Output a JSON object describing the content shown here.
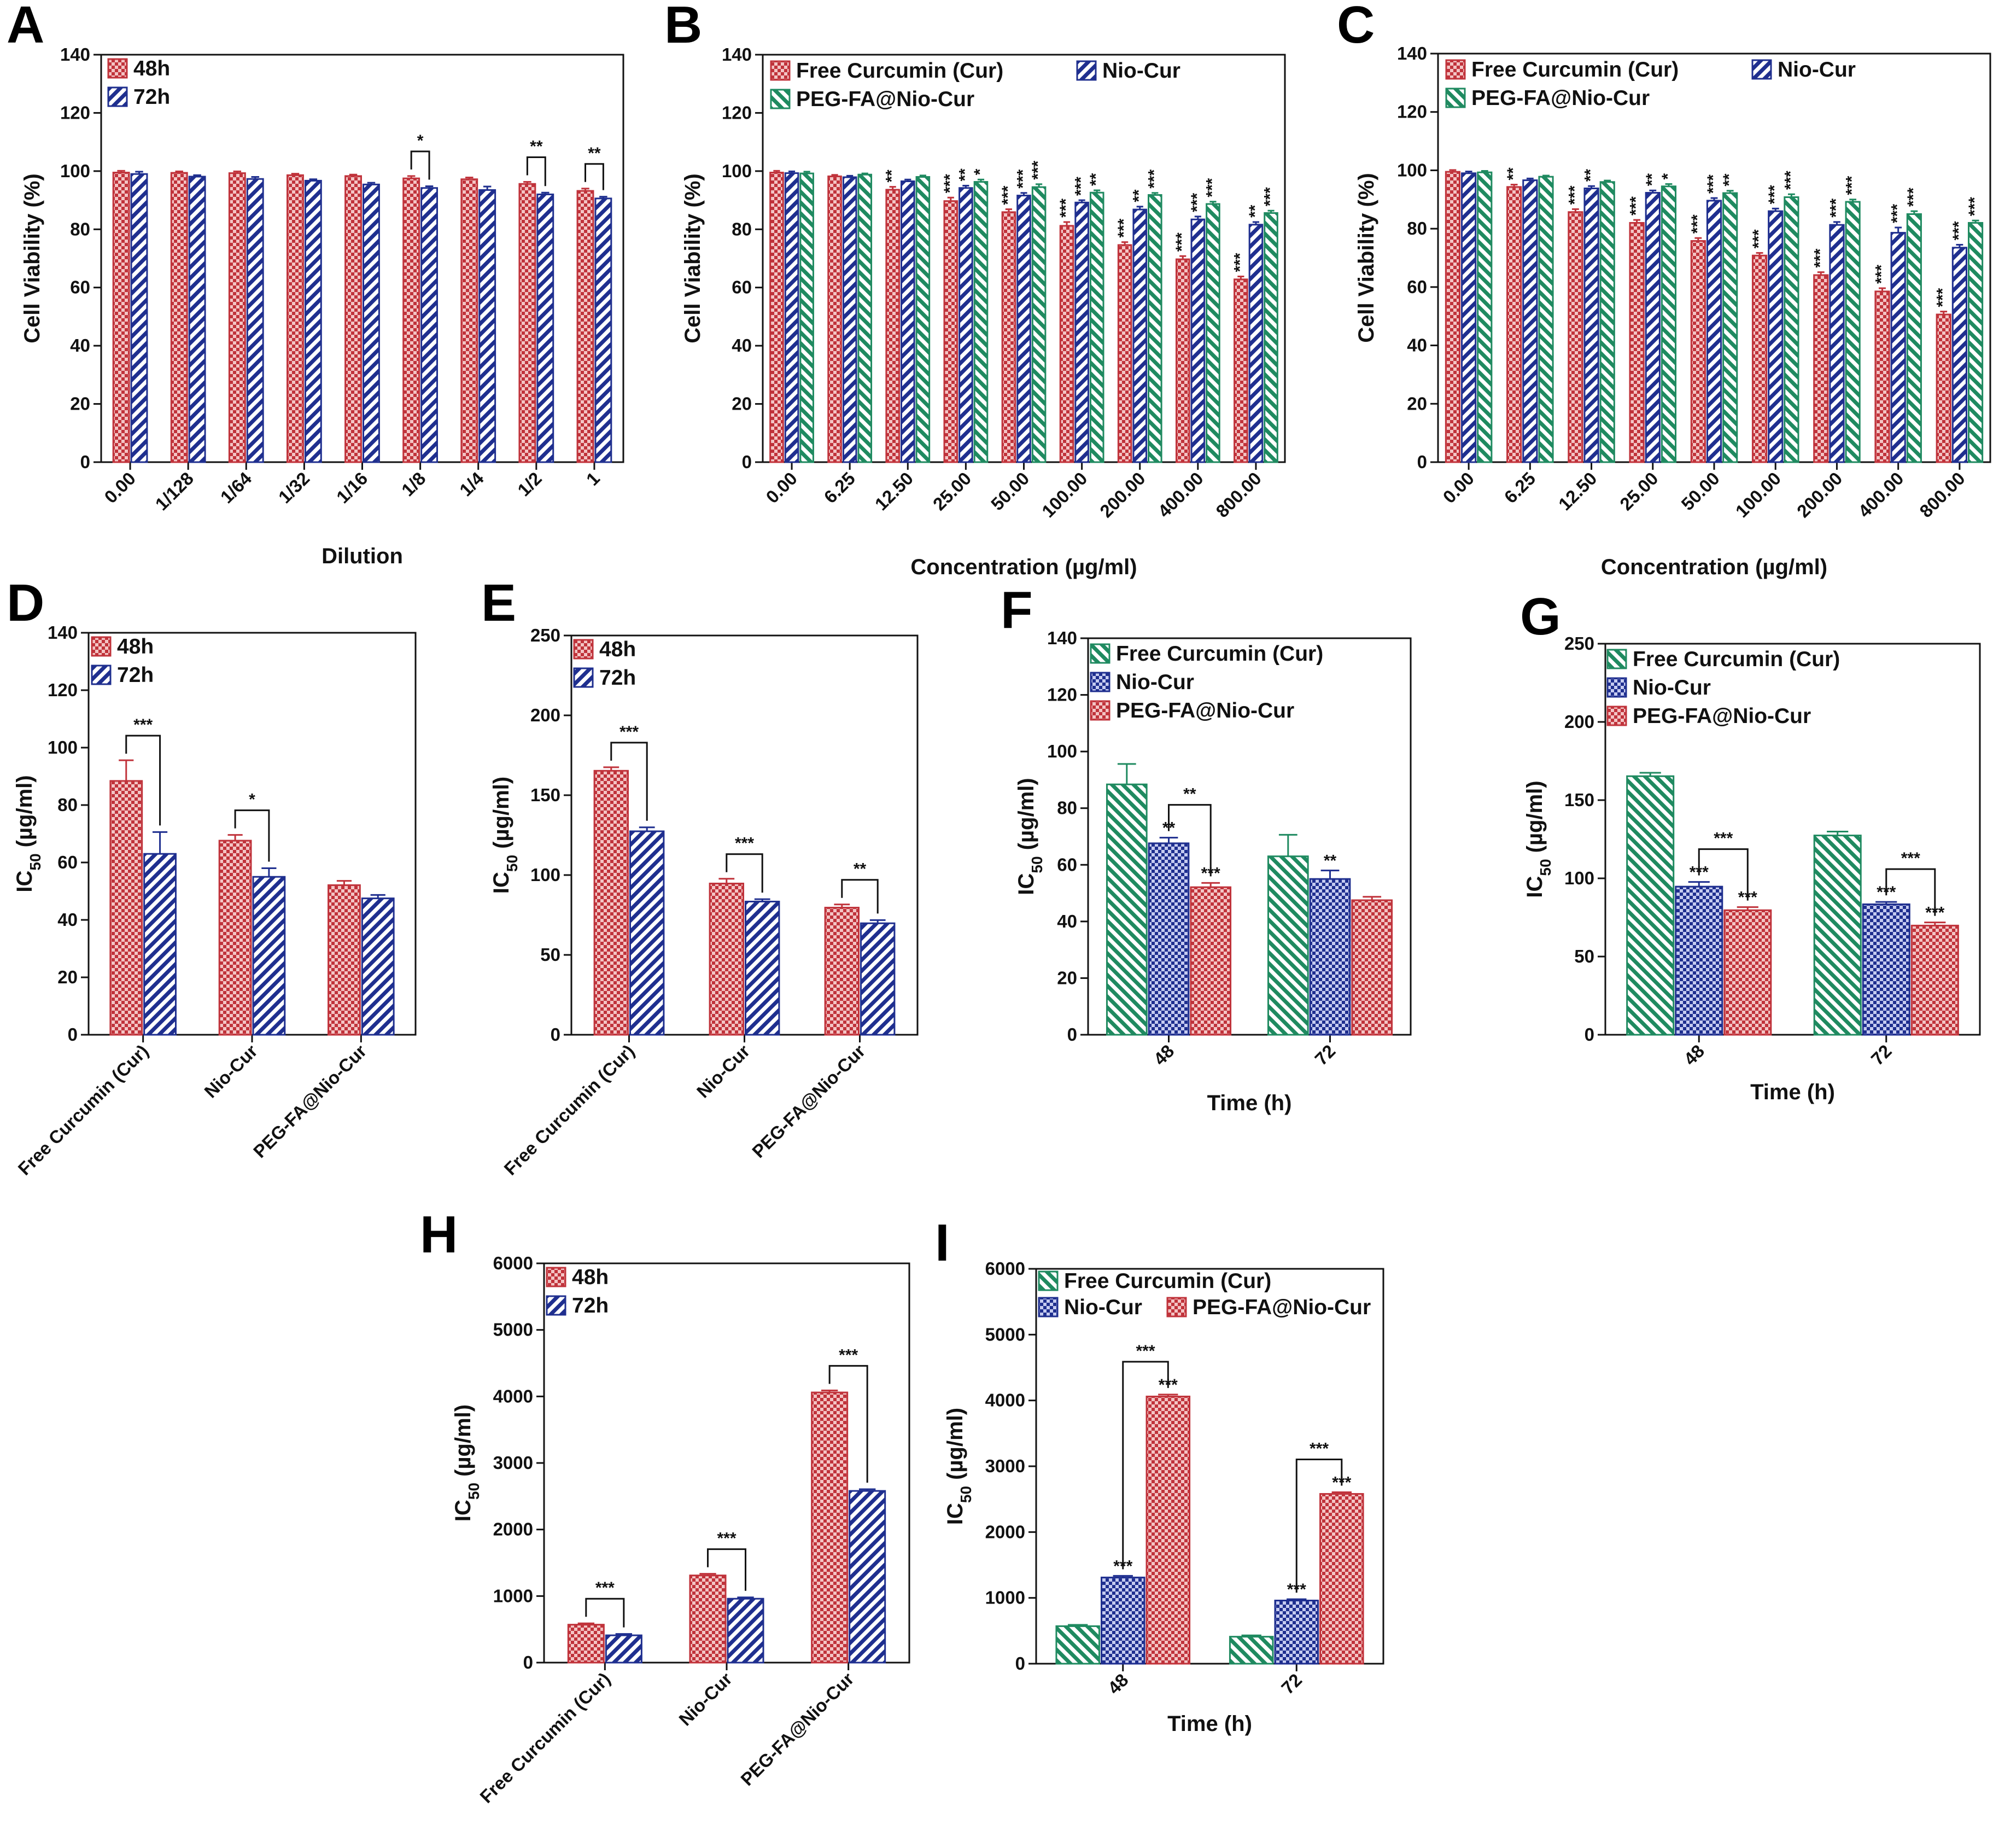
{
  "figure_title": "Cell viability and IC50 panels",
  "colors": {
    "red": "#c0333b",
    "red_fill": "#e9a5a6",
    "blue": "#1f2f8f",
    "blue_fill": "#8a93cf",
    "green": "#1f8a60",
    "green_fill": "#8fd2b3",
    "axis": "#111111"
  },
  "chart_data": [
    {
      "id": "A",
      "type": "bar",
      "letter": "A",
      "ylabel": "Cell Viability (%)",
      "xlabel": "Dilution",
      "ylim": [
        0,
        140
      ],
      "yticks": [
        0,
        20,
        40,
        60,
        80,
        100,
        120,
        140
      ],
      "categories": [
        "0.00",
        "1/128",
        "1/64",
        "1/32",
        "1/16",
        "1/8",
        "1/4",
        "1/2",
        "1"
      ],
      "rotate_ticks": true,
      "legend_position": "top-left",
      "series": [
        {
          "name": "48h",
          "color": "red",
          "values": [
            99.5,
            99.4,
            99.3,
            98.6,
            98.3,
            97.5,
            97.2,
            95.6,
            93.2
          ],
          "errors": [
            0.6,
            0.5,
            0.6,
            0.5,
            0.5,
            0.8,
            0.6,
            0.7,
            0.8
          ],
          "sig": [
            "",
            "",
            "",
            "",
            "",
            "",
            "",
            "",
            ""
          ]
        },
        {
          "name": "72h",
          "color": "blue",
          "values": [
            99.0,
            98.1,
            97.3,
            96.7,
            95.4,
            94.2,
            93.5,
            92.0,
            90.6
          ],
          "errors": [
            0.8,
            0.5,
            0.7,
            0.5,
            0.6,
            0.6,
            1.2,
            0.6,
            0.6
          ],
          "sig": [
            "",
            "",
            "",
            "",
            "",
            "",
            "",
            "",
            ""
          ]
        }
      ],
      "brackets": [
        {
          "cat": 5,
          "from": 0,
          "to": 1,
          "label": "*"
        },
        {
          "cat": 7,
          "from": 0,
          "to": 1,
          "label": "**"
        },
        {
          "cat": 8,
          "from": 0,
          "to": 1,
          "label": "**"
        }
      ]
    },
    {
      "id": "B",
      "type": "bar",
      "letter": "B",
      "ylabel": "Cell Viability (%)",
      "xlabel": "Concentration (µg/ml)",
      "ylim": [
        0,
        140
      ],
      "yticks": [
        0,
        20,
        40,
        60,
        80,
        100,
        120,
        140
      ],
      "categories": [
        "0.00",
        "6.25",
        "12.50",
        "25.00",
        "50.00",
        "100.00",
        "200.00",
        "400.00",
        "800.00"
      ],
      "rotate_ticks": true,
      "legend_position": "top",
      "series": [
        {
          "name": "Free Curcumin (Cur)",
          "color": "red",
          "values": [
            99.5,
            98.2,
            93.6,
            89.7,
            85.9,
            81.2,
            74.6,
            69.7,
            62.8
          ],
          "errors": [
            0.6,
            0.5,
            1.0,
            1.2,
            1.0,
            1.3,
            1.0,
            1.1,
            1.0
          ],
          "sig": [
            "",
            "",
            "**",
            "***",
            "***",
            "***",
            "***",
            "***",
            "***"
          ]
        },
        {
          "name": "Nio-Cur",
          "color": "blue",
          "values": [
            99.3,
            97.9,
            96.5,
            94.2,
            91.6,
            89.2,
            86.8,
            83.4,
            81.6
          ],
          "errors": [
            0.6,
            0.5,
            0.6,
            0.8,
            0.9,
            0.8,
            1.0,
            1.0,
            0.9
          ],
          "sig": [
            "",
            "",
            "",
            "**",
            "***",
            "***",
            "**",
            "***",
            "**"
          ]
        },
        {
          "name": "PEG-FA@Nio-Cur",
          "color": "green",
          "values": [
            99.2,
            98.8,
            98.0,
            96.3,
            94.5,
            92.6,
            91.8,
            88.7,
            85.6
          ],
          "errors": [
            0.6,
            0.4,
            0.5,
            0.8,
            1.0,
            0.8,
            0.7,
            0.8,
            0.8
          ],
          "sig": [
            "",
            "",
            "",
            "*",
            "***",
            "**",
            "***",
            "***",
            "***"
          ]
        }
      ],
      "brackets": []
    },
    {
      "id": "C",
      "type": "bar",
      "letter": "C",
      "ylabel": "Cell Viability (%)",
      "xlabel": "Concentration (µg/ml)",
      "ylim": [
        0,
        140
      ],
      "yticks": [
        0,
        20,
        40,
        60,
        80,
        100,
        120,
        140
      ],
      "categories": [
        "0.00",
        "6.25",
        "12.50",
        "25.00",
        "50.00",
        "100.00",
        "200.00",
        "400.00",
        "800.00"
      ],
      "rotate_ticks": true,
      "legend_position": "top",
      "series": [
        {
          "name": "Free Curcumin (Cur)",
          "color": "red",
          "values": [
            99.5,
            94.3,
            85.7,
            82.0,
            75.8,
            70.8,
            64.1,
            58.5,
            50.6
          ],
          "errors": [
            0.6,
            0.8,
            1.0,
            1.0,
            1.0,
            0.9,
            1.0,
            1.1,
            1.0
          ],
          "sig": [
            "",
            "**",
            "***",
            "***",
            "***",
            "***",
            "***",
            "***",
            "***"
          ]
        },
        {
          "name": "Nio-Cur",
          "color": "blue",
          "values": [
            99.0,
            96.6,
            93.8,
            92.3,
            89.6,
            86.0,
            81.3,
            78.6,
            73.5
          ],
          "errors": [
            0.6,
            0.6,
            0.8,
            0.8,
            0.9,
            0.9,
            1.0,
            1.8,
            1.0
          ],
          "sig": [
            "",
            "",
            "**",
            "**",
            "***",
            "***",
            "***",
            "***",
            "***"
          ]
        },
        {
          "name": "PEG-FA@Nio-Cur",
          "color": "green",
          "values": [
            99.3,
            97.8,
            96.0,
            94.5,
            92.2,
            90.8,
            89.2,
            85.0,
            82.0
          ],
          "errors": [
            0.5,
            0.4,
            0.5,
            0.8,
            0.8,
            1.0,
            0.8,
            1.0,
            0.8
          ],
          "sig": [
            "",
            "",
            "",
            "*",
            "**",
            "***",
            "***",
            "***",
            "***"
          ]
        }
      ],
      "brackets": []
    },
    {
      "id": "D",
      "type": "bar",
      "letter": "D",
      "ylabel": "IC50 (µg/ml)",
      "xlabel": "",
      "ylim": [
        0,
        140
      ],
      "yticks": [
        0,
        20,
        40,
        60,
        80,
        100,
        120,
        140
      ],
      "categories": [
        "Free Curcumin (Cur)",
        "Nio-Cur",
        "PEG-FA@Nio-Cur"
      ],
      "rotate_ticks": true,
      "legend_position": "top-left",
      "series": [
        {
          "name": "48h",
          "color": "red",
          "values": [
            88.4,
            67.6,
            52.1
          ],
          "errors": [
            7.2,
            2.0,
            1.5
          ],
          "sig": [
            "",
            "",
            ""
          ]
        },
        {
          "name": "72h",
          "color": "blue",
          "values": [
            63.0,
            55.0,
            47.5
          ],
          "errors": [
            7.6,
            3.0,
            1.2
          ],
          "sig": [
            "",
            "",
            ""
          ]
        }
      ],
      "brackets": [
        {
          "cat": 0,
          "from": 0,
          "to": 1,
          "label": "***"
        },
        {
          "cat": 1,
          "from": 0,
          "to": 1,
          "label": "*"
        }
      ]
    },
    {
      "id": "E",
      "type": "bar",
      "letter": "E",
      "ylabel": "IC50 (µg/ml)",
      "xlabel": "",
      "ylim": [
        0,
        250
      ],
      "yticks": [
        0,
        50,
        100,
        150,
        200,
        250
      ],
      "categories": [
        "Free Curcumin (Cur)",
        "Nio-Cur",
        "PEG-FA@Nio-Cur"
      ],
      "rotate_ticks": true,
      "legend_position": "top-left",
      "series": [
        {
          "name": "48h",
          "color": "red",
          "values": [
            165.3,
            94.7,
            79.6
          ],
          "errors": [
            2.2,
            3.0,
            2.0
          ],
          "sig": [
            "",
            "",
            ""
          ]
        },
        {
          "name": "72h",
          "color": "blue",
          "values": [
            127.4,
            83.4,
            69.8
          ],
          "errors": [
            2.5,
            1.5,
            2.0
          ],
          "sig": [
            "",
            "",
            ""
          ]
        }
      ],
      "brackets": [
        {
          "cat": 0,
          "from": 0,
          "to": 1,
          "label": "***"
        },
        {
          "cat": 1,
          "from": 0,
          "to": 1,
          "label": "***"
        },
        {
          "cat": 2,
          "from": 0,
          "to": 1,
          "label": "**"
        }
      ]
    },
    {
      "id": "F",
      "type": "bar",
      "letter": "F",
      "ylabel": "IC50 (µg/ml)",
      "xlabel": "Time (h)",
      "ylim": [
        0,
        140
      ],
      "yticks": [
        0,
        20,
        40,
        60,
        80,
        100,
        120,
        140
      ],
      "categories": [
        "48",
        "72"
      ],
      "rotate_ticks": true,
      "legend_position": "top-left",
      "series": [
        {
          "name": "Free Curcumin (Cur)",
          "color": "green",
          "values": [
            88.4,
            63.0
          ],
          "errors": [
            7.2,
            7.6
          ],
          "sig": [
            "",
            ""
          ]
        },
        {
          "name": "Nio-Cur",
          "color": "blue",
          "values": [
            67.6,
            55.0
          ],
          "errors": [
            2.0,
            3.0
          ],
          "sig": [
            "**",
            "**"
          ]
        },
        {
          "name": "PEG-FA@Nio-Cur",
          "color": "red",
          "values": [
            52.1,
            47.5
          ],
          "errors": [
            1.5,
            1.2
          ],
          "sig": [
            "***",
            ""
          ]
        }
      ],
      "brackets": [
        {
          "cat": 0,
          "from": 1,
          "to": 2,
          "label": "**"
        }
      ]
    },
    {
      "id": "G",
      "type": "bar",
      "letter": "G",
      "ylabel": "IC50 (µg/ml)",
      "xlabel": "Time (h)",
      "ylim": [
        0,
        250
      ],
      "yticks": [
        0,
        50,
        100,
        150,
        200,
        250
      ],
      "categories": [
        "48",
        "72"
      ],
      "rotate_ticks": true,
      "legend_position": "top-left",
      "series": [
        {
          "name": "Free Curcumin (Cur)",
          "color": "green",
          "values": [
            165.3,
            127.4
          ],
          "errors": [
            2.2,
            2.5
          ],
          "sig": [
            "",
            ""
          ]
        },
        {
          "name": "Nio-Cur",
          "color": "blue",
          "values": [
            94.7,
            83.4
          ],
          "errors": [
            3.0,
            1.5
          ],
          "sig": [
            "***",
            "***"
          ]
        },
        {
          "name": "PEG-FA@Nio-Cur",
          "color": "red",
          "values": [
            79.6,
            69.8
          ],
          "errors": [
            2.0,
            2.0
          ],
          "sig": [
            "***",
            "***"
          ]
        }
      ],
      "brackets": [
        {
          "cat": 0,
          "from": 1,
          "to": 2,
          "label": "***"
        },
        {
          "cat": 1,
          "from": 1,
          "to": 2,
          "label": "***"
        }
      ]
    },
    {
      "id": "H",
      "type": "bar",
      "letter": "H",
      "ylabel": "IC50 (µg/ml)",
      "xlabel": "",
      "ylim": [
        0,
        6000
      ],
      "yticks": [
        0,
        1000,
        2000,
        3000,
        4000,
        5000,
        6000
      ],
      "categories": [
        "Free Curcumin (Cur)",
        "Nio-Cur",
        "PEG-FA@Nio-Cur"
      ],
      "rotate_ticks": true,
      "legend_position": "top-left",
      "series": [
        {
          "name": "48h",
          "color": "red",
          "values": [
            570,
            1310,
            4060
          ],
          "errors": [
            20,
            25,
            30
          ],
          "sig": [
            "",
            "",
            ""
          ]
        },
        {
          "name": "72h",
          "color": "blue",
          "values": [
            410,
            960,
            2580
          ],
          "errors": [
            20,
            20,
            25
          ],
          "sig": [
            "",
            "",
            ""
          ]
        }
      ],
      "brackets": [
        {
          "cat": 0,
          "from": 0,
          "to": 1,
          "label": "***"
        },
        {
          "cat": 1,
          "from": 0,
          "to": 1,
          "label": "***"
        },
        {
          "cat": 2,
          "from": 0,
          "to": 1,
          "label": "***"
        }
      ]
    },
    {
      "id": "I",
      "type": "bar",
      "letter": "I",
      "ylabel": "IC50 (µg/ml)",
      "xlabel": "Time (h)",
      "ylim": [
        0,
        6000
      ],
      "yticks": [
        0,
        1000,
        2000,
        3000,
        4000,
        5000,
        6000
      ],
      "categories": [
        "48",
        "72"
      ],
      "rotate_ticks": true,
      "legend_position": "top-left",
      "series": [
        {
          "name": "Free Curcumin (Cur)",
          "color": "green",
          "values": [
            570,
            410
          ],
          "errors": [
            20,
            20
          ],
          "sig": [
            "",
            ""
          ]
        },
        {
          "name": "Nio-Cur",
          "color": "blue",
          "values": [
            1310,
            960
          ],
          "errors": [
            25,
            20
          ],
          "sig": [
            "***",
            "***"
          ]
        },
        {
          "name": "PEG-FA@Nio-Cur",
          "color": "red",
          "values": [
            4060,
            2580
          ],
          "errors": [
            30,
            25
          ],
          "sig": [
            "***",
            "***"
          ]
        }
      ],
      "brackets": [
        {
          "cat": 0,
          "from": 1,
          "to": 2,
          "label": "***"
        },
        {
          "cat": 1,
          "from": 1,
          "to": 2,
          "label": "***"
        }
      ]
    }
  ]
}
